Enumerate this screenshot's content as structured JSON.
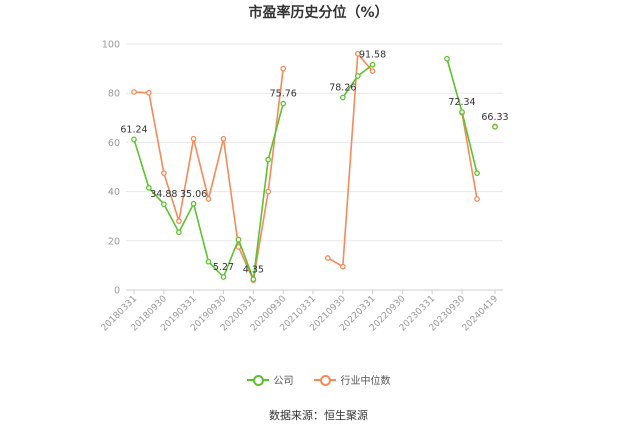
{
  "title": "市盈率历史分位（%）",
  "source": "数据来源：恒生聚源",
  "colors": {
    "company": "#5cc32e",
    "industry": "#f58a5a",
    "grid": "#e8e8e8",
    "axis": "#999999"
  },
  "legend": [
    {
      "name": "公司",
      "color": "#5cc32e"
    },
    {
      "name": "行业中位数",
      "color": "#f58a5a"
    }
  ],
  "chart_data": {
    "type": "line",
    "ylim": [
      0,
      100
    ],
    "yticks": [
      0,
      20,
      40,
      60,
      80,
      100
    ],
    "x_tick_labels": [
      "20180331",
      "20180930",
      "20190331",
      "20190930",
      "20200331",
      "20200930",
      "20210331",
      "20210930",
      "20220331",
      "20220930",
      "20230331",
      "20230930",
      "20240419"
    ],
    "x": [
      "20180331",
      "20180630",
      "20180930",
      "20181231",
      "20190331",
      "20190630",
      "20190930",
      "20191231",
      "20200331",
      "20200630",
      "20200930",
      "20201231",
      "20210331",
      "20210630",
      "20210930",
      "20211231",
      "20220331",
      "20220630",
      "20220930",
      "20221231",
      "20230331",
      "20230630",
      "20230930",
      "20231231",
      "20240331",
      "20240419"
    ],
    "series": [
      {
        "name": "公司",
        "values": [
          61.24,
          41.5,
          34.88,
          23.5,
          35.06,
          11.5,
          5.27,
          20.5,
          4.35,
          53.0,
          75.76,
          null,
          null,
          null,
          78.26,
          87.0,
          91.58,
          null,
          null,
          null,
          null,
          94.0,
          72.34,
          47.5,
          null,
          66.33
        ],
        "labels": [
          {
            "index": 0,
            "text": "61.24"
          },
          {
            "index": 2,
            "text": "34.88"
          },
          {
            "index": 4,
            "text": "35.06"
          },
          {
            "index": 6,
            "text": "5.27"
          },
          {
            "index": 8,
            "text": "4.35"
          },
          {
            "index": 10,
            "text": "75.76"
          },
          {
            "index": 14,
            "text": "78.26"
          },
          {
            "index": 16,
            "text": "91.58"
          },
          {
            "index": 22,
            "text": "72.34"
          },
          {
            "index": 25,
            "text": "66.33"
          }
        ]
      },
      {
        "name": "行业中位数",
        "values": [
          80.5,
          80.2,
          47.5,
          28.0,
          61.5,
          37.0,
          61.5,
          17.5,
          4.0,
          40.0,
          90.0,
          null,
          null,
          13.0,
          9.5,
          96.0,
          89.0,
          null,
          null,
          null,
          null,
          null,
          72.0,
          37.0,
          null,
          66.5
        ]
      }
    ]
  }
}
